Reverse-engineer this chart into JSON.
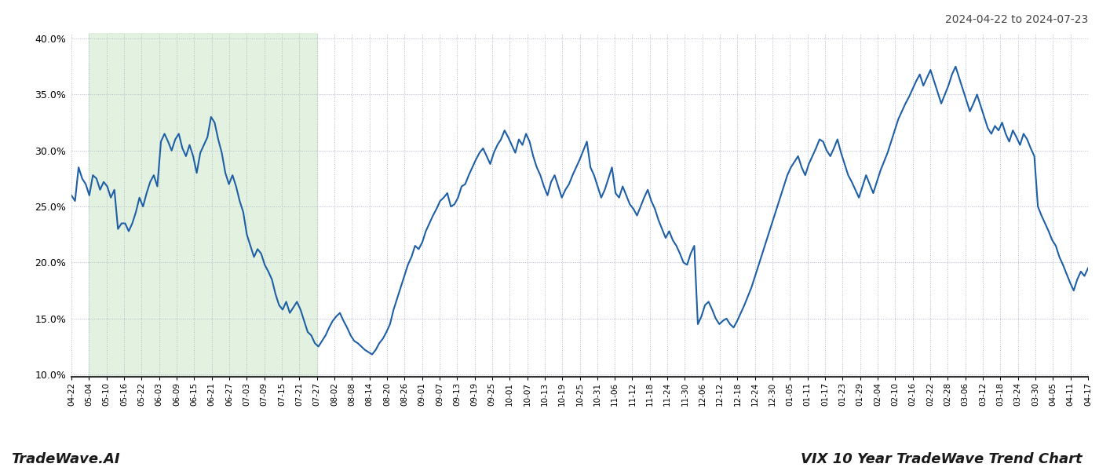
{
  "title_right": "2024-04-22 to 2024-07-23",
  "footer_left": "TradeWave.AI",
  "footer_right": "VIX 10 Year TradeWave Trend Chart",
  "ylim": [
    0.1,
    0.4
  ],
  "yticks": [
    0.1,
    0.15,
    0.2,
    0.25,
    0.3,
    0.35,
    0.4
  ],
  "line_color": "#1f5fa6",
  "line_width": 1.5,
  "background_color": "#ffffff",
  "grid_color": "#b0b8c8",
  "grid_style": "dotted",
  "shade_color": "#d8edd4",
  "shade_alpha": 0.7,
  "x_labels": [
    "04-22",
    "05-04",
    "05-10",
    "05-16",
    "05-22",
    "06-03",
    "06-09",
    "06-15",
    "06-21",
    "06-27",
    "07-03",
    "07-09",
    "07-15",
    "07-21",
    "07-27",
    "08-02",
    "08-08",
    "08-14",
    "08-20",
    "08-26",
    "09-01",
    "09-07",
    "09-13",
    "09-19",
    "09-25",
    "10-01",
    "10-07",
    "10-13",
    "10-19",
    "10-25",
    "10-31",
    "11-06",
    "11-12",
    "11-18",
    "11-24",
    "11-30",
    "12-06",
    "12-12",
    "12-18",
    "12-24",
    "12-30",
    "01-05",
    "01-11",
    "01-17",
    "01-23",
    "01-29",
    "02-04",
    "02-10",
    "02-16",
    "02-22",
    "02-28",
    "03-06",
    "03-12",
    "03-18",
    "03-24",
    "03-30",
    "04-05",
    "04-11",
    "04-17"
  ],
  "y_values": [
    0.26,
    0.255,
    0.285,
    0.275,
    0.27,
    0.26,
    0.278,
    0.275,
    0.265,
    0.272,
    0.268,
    0.258,
    0.265,
    0.23,
    0.235,
    0.235,
    0.228,
    0.235,
    0.245,
    0.258,
    0.25,
    0.262,
    0.272,
    0.278,
    0.268,
    0.308,
    0.315,
    0.308,
    0.3,
    0.31,
    0.315,
    0.302,
    0.295,
    0.305,
    0.295,
    0.28,
    0.298,
    0.305,
    0.312,
    0.33,
    0.325,
    0.31,
    0.298,
    0.28,
    0.27,
    0.278,
    0.268,
    0.255,
    0.245,
    0.225,
    0.215,
    0.205,
    0.212,
    0.208,
    0.198,
    0.192,
    0.185,
    0.172,
    0.162,
    0.158,
    0.165,
    0.155,
    0.16,
    0.165,
    0.158,
    0.148,
    0.138,
    0.135,
    0.128,
    0.125,
    0.13,
    0.135,
    0.142,
    0.148,
    0.152,
    0.155,
    0.148,
    0.142,
    0.135,
    0.13,
    0.128,
    0.125,
    0.122,
    0.12,
    0.118,
    0.122,
    0.128,
    0.132,
    0.138,
    0.145,
    0.158,
    0.168,
    0.178,
    0.188,
    0.198,
    0.205,
    0.215,
    0.212,
    0.218,
    0.228,
    0.235,
    0.242,
    0.248,
    0.255,
    0.258,
    0.262,
    0.25,
    0.252,
    0.258,
    0.268,
    0.27,
    0.278,
    0.285,
    0.292,
    0.298,
    0.302,
    0.295,
    0.288,
    0.298,
    0.305,
    0.31,
    0.318,
    0.312,
    0.305,
    0.298,
    0.31,
    0.305,
    0.315,
    0.308,
    0.295,
    0.285,
    0.278,
    0.268,
    0.26,
    0.272,
    0.278,
    0.268,
    0.258,
    0.265,
    0.27,
    0.278,
    0.285,
    0.292,
    0.3,
    0.308,
    0.285,
    0.278,
    0.268,
    0.258,
    0.265,
    0.275,
    0.285,
    0.262,
    0.258,
    0.268,
    0.26,
    0.252,
    0.248,
    0.242,
    0.25,
    0.258,
    0.265,
    0.255,
    0.248,
    0.238,
    0.23,
    0.222,
    0.228,
    0.22,
    0.215,
    0.208,
    0.2,
    0.198,
    0.208,
    0.215,
    0.145,
    0.152,
    0.162,
    0.165,
    0.158,
    0.15,
    0.145,
    0.148,
    0.15,
    0.145,
    0.142,
    0.148,
    0.155,
    0.162,
    0.17,
    0.178,
    0.188,
    0.198,
    0.208,
    0.218,
    0.228,
    0.238,
    0.248,
    0.258,
    0.268,
    0.278,
    0.285,
    0.29,
    0.295,
    0.285,
    0.278,
    0.288,
    0.295,
    0.302,
    0.31,
    0.308,
    0.3,
    0.295,
    0.302,
    0.31,
    0.298,
    0.288,
    0.278,
    0.272,
    0.265,
    0.258,
    0.268,
    0.278,
    0.27,
    0.262,
    0.272,
    0.282,
    0.29,
    0.298,
    0.308,
    0.318,
    0.328,
    0.335,
    0.342,
    0.348,
    0.355,
    0.362,
    0.368,
    0.358,
    0.365,
    0.372,
    0.362,
    0.352,
    0.342,
    0.35,
    0.358,
    0.368,
    0.375,
    0.365,
    0.355,
    0.345,
    0.335,
    0.342,
    0.35,
    0.34,
    0.33,
    0.32,
    0.315,
    0.322,
    0.318,
    0.325,
    0.315,
    0.308,
    0.318,
    0.312,
    0.305,
    0.315,
    0.31,
    0.302,
    0.295,
    0.25,
    0.242,
    0.235,
    0.228,
    0.22,
    0.215,
    0.205,
    0.198,
    0.19,
    0.182,
    0.175,
    0.185,
    0.192,
    0.188,
    0.195
  ],
  "shade_start_label": "05-04",
  "shade_end_label": "07-27",
  "n_ticks": 59
}
